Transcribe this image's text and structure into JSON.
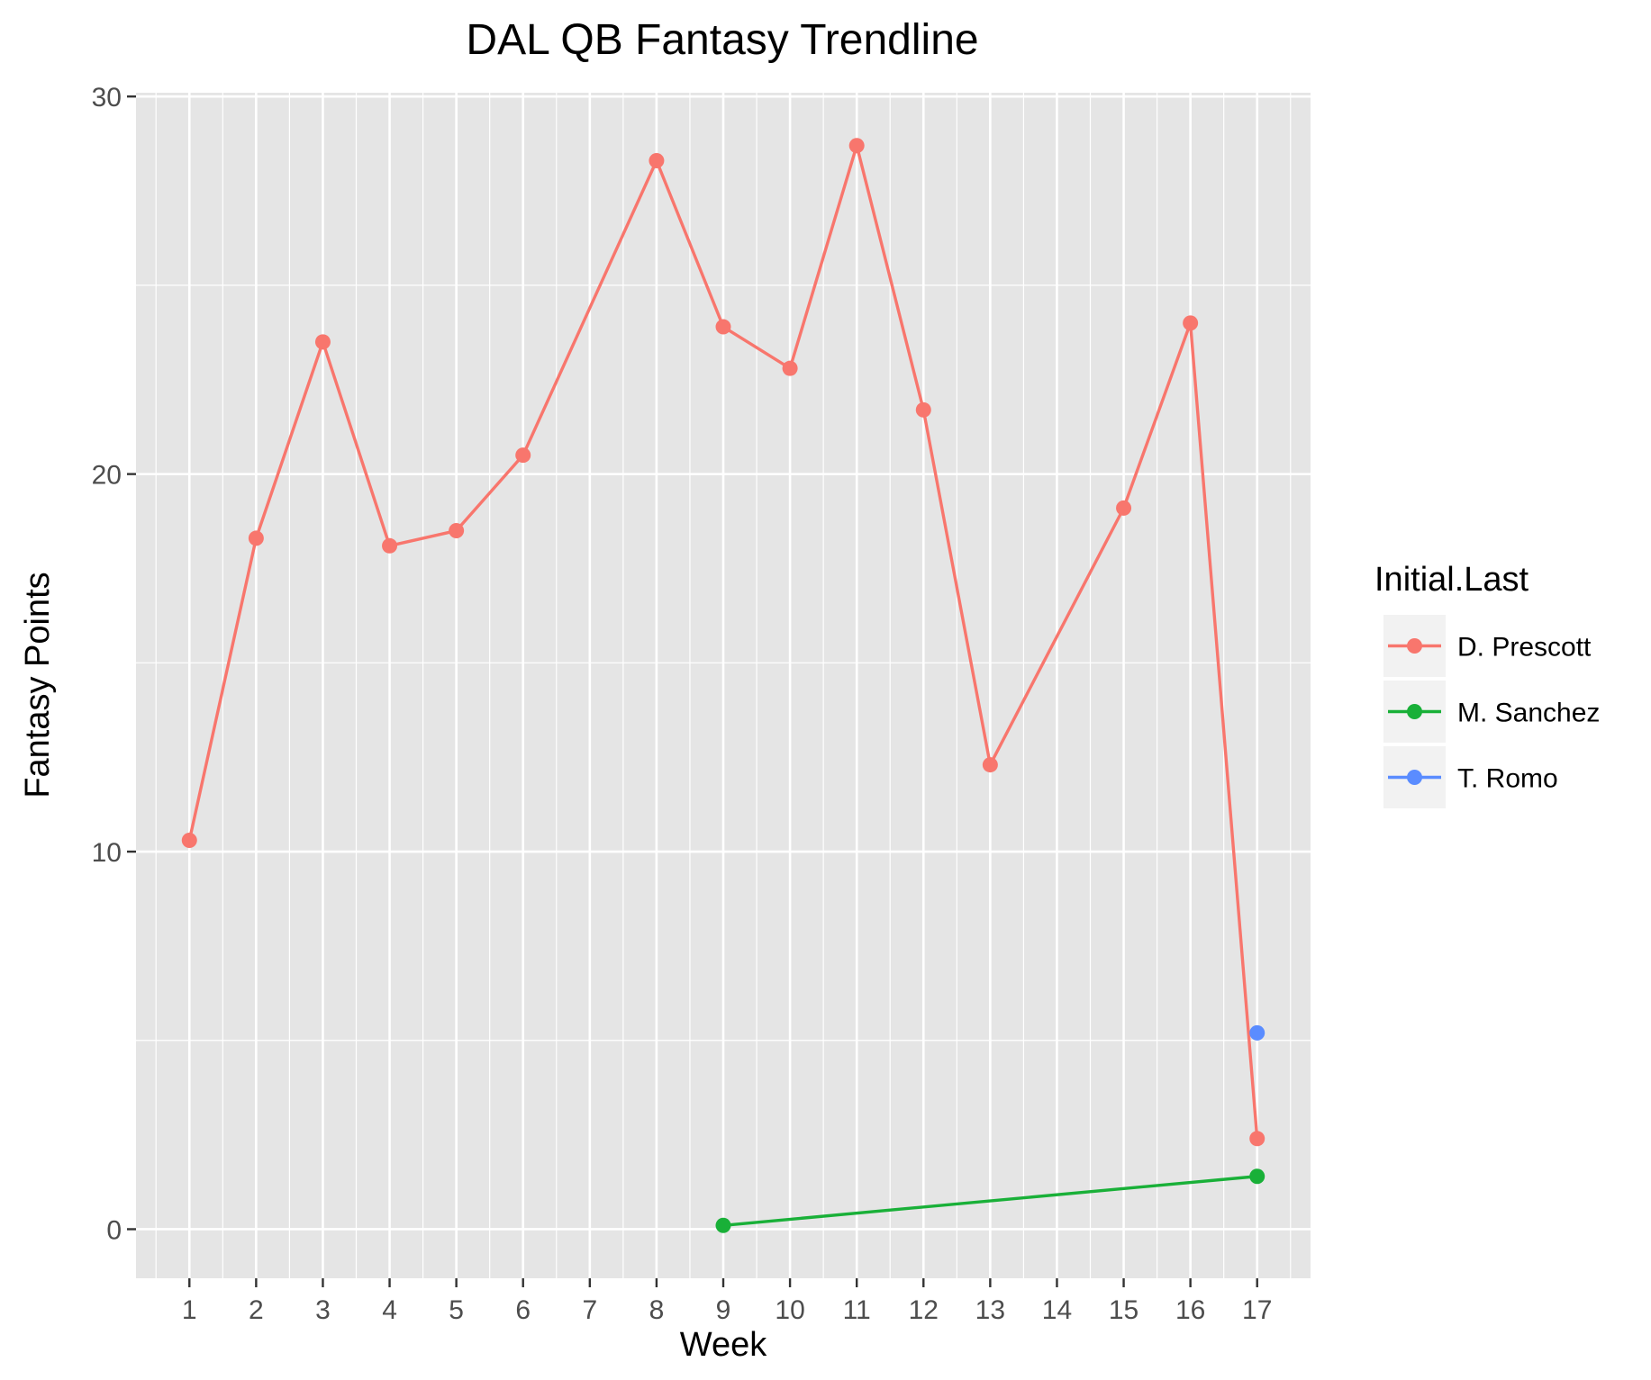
{
  "chart_data": {
    "type": "line",
    "title": "DAL QB Fantasy Trendline",
    "xlabel": "Week",
    "ylabel": "Fantasy Points",
    "xlim": [
      0.2,
      17.8
    ],
    "ylim": [
      -1.3,
      30.1
    ],
    "x_ticks": [
      1,
      2,
      3,
      4,
      5,
      6,
      7,
      8,
      9,
      10,
      11,
      12,
      13,
      14,
      15,
      16,
      17
    ],
    "x_tick_labels": [
      "1",
      "2",
      "3",
      "4",
      "5",
      "6",
      "7",
      "8",
      "9",
      "10",
      "11",
      "12",
      "13",
      "14",
      "15",
      "16",
      "17"
    ],
    "y_ticks": [
      0,
      10,
      20,
      30
    ],
    "y_tick_labels": [
      "0",
      "10",
      "20",
      "30"
    ],
    "y_minor_ticks": [
      5,
      15,
      25
    ],
    "grid": true,
    "panel_background": "#e5e5e5",
    "grid_color": "#ffffff",
    "legend": {
      "title": "Initial.Last",
      "placement": "right",
      "entries": [
        "D. Prescott",
        "M. Sanchez",
        "T. Romo"
      ]
    },
    "series": [
      {
        "name": "D. Prescott",
        "color": "#f8766d",
        "x": [
          1,
          2,
          3,
          4,
          5,
          6,
          8,
          9,
          10,
          11,
          12,
          13,
          15,
          16,
          17
        ],
        "y": [
          10.3,
          18.3,
          23.5,
          18.1,
          18.5,
          20.5,
          28.3,
          23.9,
          22.8,
          28.7,
          21.7,
          12.3,
          19.1,
          24.0,
          2.4
        ]
      },
      {
        "name": "M. Sanchez",
        "color": "#19b038",
        "x": [
          9,
          17
        ],
        "y": [
          0.1,
          1.4
        ]
      },
      {
        "name": "T. Romo",
        "color": "#5a8cff",
        "x": [
          17
        ],
        "y": [
          5.2
        ]
      }
    ]
  }
}
